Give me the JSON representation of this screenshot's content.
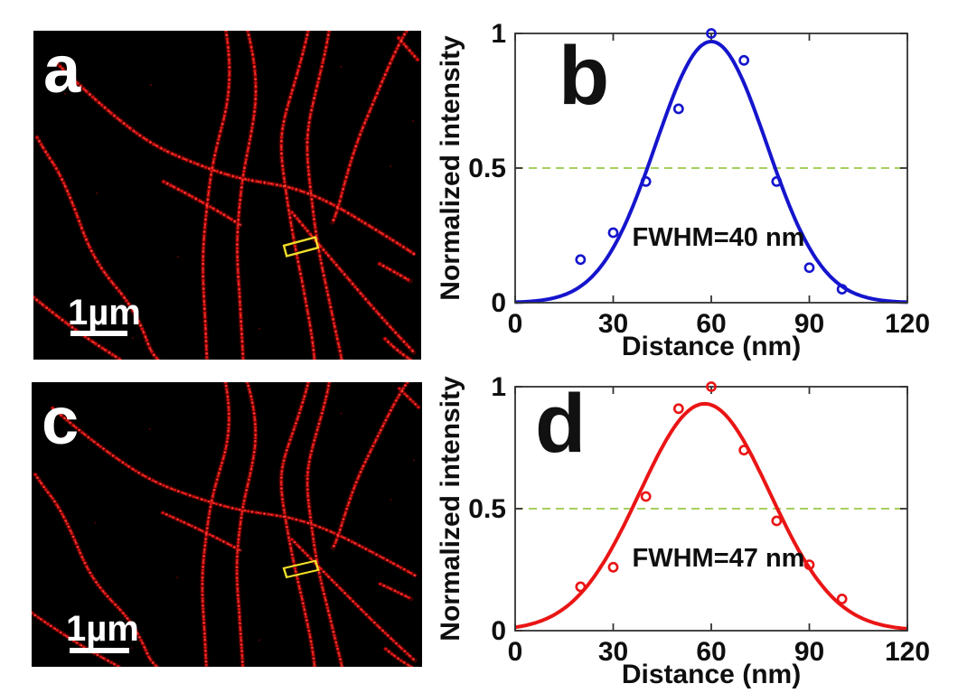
{
  "panels": {
    "a": {
      "label": "a",
      "scale_bar_label": "1µm"
    },
    "c": {
      "label": "c",
      "scale_bar_label": "1µm"
    }
  },
  "colors": {
    "filament_red": "#e41212",
    "microscopy_background": "#000000",
    "roi": "#f2df2a",
    "scale_bar": "#ffffff",
    "axis_text": "#0f0f0f",
    "series_b_blue": "#1515cd",
    "series_d_red": "#ea1515",
    "half_max_green": "#a6cf5e"
  },
  "chart_data": [
    {
      "id": "b",
      "type": "scatter",
      "panel_label": "b",
      "xlabel": "Distance (nm)",
      "ylabel": "Normalized intensity",
      "xlim": [
        0,
        120
      ],
      "ylim": [
        0,
        1
      ],
      "xticks": [
        0,
        30,
        60,
        90,
        120
      ],
      "yticks": [
        0,
        0.5,
        1
      ],
      "ytick_labels": [
        "0",
        "0.5",
        "1"
      ],
      "x": [
        20,
        30,
        40,
        50,
        60,
        70,
        80,
        90,
        100
      ],
      "y": [
        0.16,
        0.26,
        0.45,
        0.72,
        1.0,
        0.9,
        0.45,
        0.13,
        0.05
      ],
      "fit": {
        "shape": "gaussian",
        "center": 60,
        "peak": 0.97,
        "fwhm": 40
      },
      "annotation": "FWHM=40 nm",
      "half_max_level": 0.5,
      "legend": "none",
      "grid": "off",
      "colors": {
        "series": "#1515cd",
        "half_max_line": "#a6cf5e"
      }
    },
    {
      "id": "d",
      "type": "scatter",
      "panel_label": "d",
      "xlabel": "Distance (nm)",
      "ylabel": "Normalized intensity",
      "xlim": [
        0,
        120
      ],
      "ylim": [
        0,
        1
      ],
      "xticks": [
        0,
        30,
        60,
        90,
        120
      ],
      "yticks": [
        0,
        0.5,
        1
      ],
      "ytick_labels": [
        "0",
        "0.5",
        "1"
      ],
      "x": [
        20,
        30,
        40,
        50,
        60,
        70,
        80,
        90,
        100
      ],
      "y": [
        0.18,
        0.26,
        0.55,
        0.91,
        1.0,
        0.74,
        0.45,
        0.27,
        0.13
      ],
      "fit": {
        "shape": "gaussian",
        "center": 58,
        "peak": 0.93,
        "fwhm": 47
      },
      "annotation": "FWHM=47 nm",
      "half_max_level": 0.5,
      "legend": "none",
      "grid": "off",
      "colors": {
        "series": "#ea1515",
        "half_max_line": "#a6cf5e"
      }
    }
  ]
}
